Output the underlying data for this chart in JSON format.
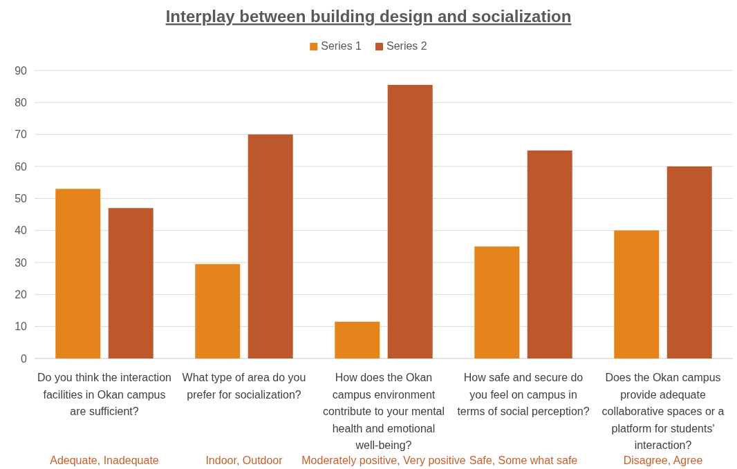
{
  "chart_data": {
    "type": "bar",
    "title": "Interplay between building design and socialization",
    "categories": [
      "Do you think the interaction facilities in Okan campus are sufficient?",
      "What type of area do you prefer for socialization?",
      "How does the Okan campus environment contribute to your mental health and emotional well-being?",
      "How safe and secure do you feel on campus in terms of social perception?",
      "Does the Okan campus provide adequate collaborative spaces or a platform for students' interaction?"
    ],
    "series": [
      {
        "name": "Series 1",
        "color": "#e5841a",
        "values": [
          53,
          29.5,
          11.5,
          35,
          40
        ]
      },
      {
        "name": "Series 2",
        "color": "#bd582c",
        "values": [
          47,
          70,
          85.5,
          65,
          60
        ]
      }
    ],
    "ylim": [
      0,
      90
    ],
    "yticks": [
      0,
      10,
      20,
      30,
      40,
      50,
      60,
      70,
      80,
      90
    ],
    "grid": "y",
    "legend": "top",
    "annotations": [
      "Adequate, Inadequate",
      "Indoor, Outdoor",
      "Moderately positive, Very positive",
      "Safe, Some what safe",
      "Disagree, Agree"
    ]
  }
}
